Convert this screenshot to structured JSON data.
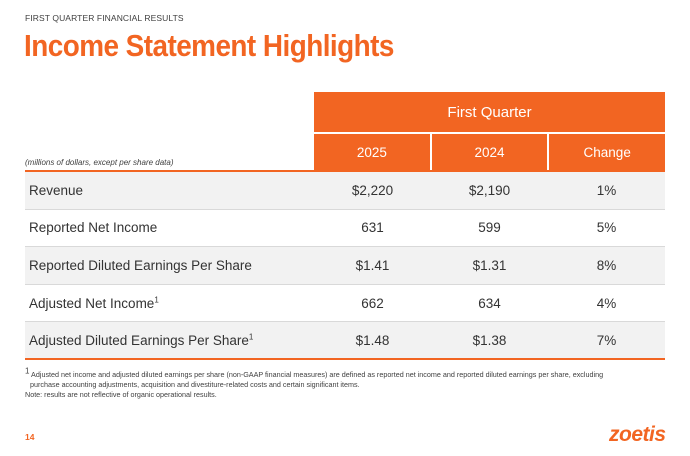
{
  "header": {
    "eyebrow": "FIRST QUARTER FINANCIAL RESULTS",
    "title": "Income Statement Highlights"
  },
  "table": {
    "group_header": "First Quarter",
    "units_note": "(millions of dollars, except per share data)",
    "columns": [
      "2025",
      "2024",
      "Change"
    ],
    "rows": [
      {
        "label": "Revenue",
        "sup": "",
        "values": [
          "$2,220",
          "$2,190",
          "1%"
        ]
      },
      {
        "label": "Reported Net Income",
        "sup": "",
        "values": [
          "631",
          "599",
          "5%"
        ]
      },
      {
        "label": "Reported Diluted Earnings Per Share",
        "sup": "",
        "values": [
          "$1.41",
          "$1.31",
          "8%"
        ]
      },
      {
        "label": "Adjusted Net Income",
        "sup": "1",
        "values": [
          "662",
          "634",
          "4%"
        ]
      },
      {
        "label": "Adjusted Diluted Earnings Per Share",
        "sup": "1",
        "values": [
          "$1.48",
          "$1.38",
          "7%"
        ]
      }
    ]
  },
  "footnotes": {
    "note1_marker": "1",
    "note1_line1": " Adjusted net income and adjusted diluted earnings per share (non-GAAP financial measures) are defined as reported net income and reported diluted earnings per share, excluding",
    "note1_line2": "purchase accounting adjustments, acquisition and divestiture-related costs and certain significant items.",
    "note2": "Note: results are not reflective of organic operational results."
  },
  "page_number": "14",
  "logo_text": "zoetis",
  "colors": {
    "accent": "#f26522",
    "row_shade": "#f2f2f2"
  }
}
